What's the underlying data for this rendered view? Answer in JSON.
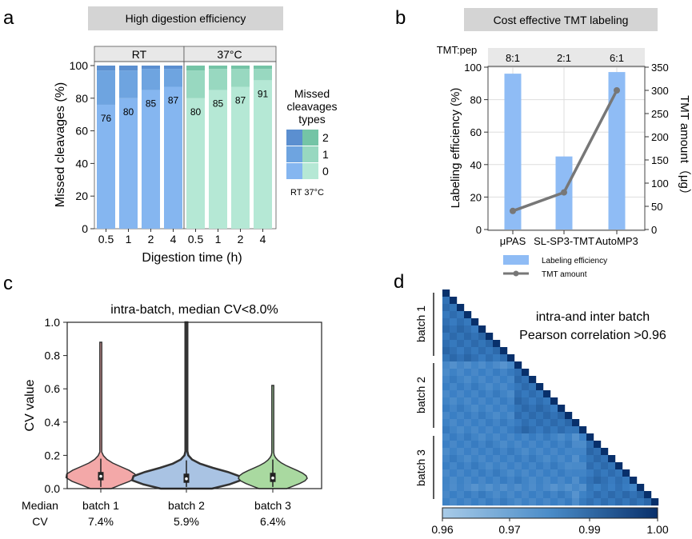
{
  "panels": {
    "a": {
      "letter": "a",
      "header": "High digestion efficiency"
    },
    "b": {
      "letter": "b",
      "header": "Cost effective TMT labeling"
    },
    "c": {
      "letter": "c"
    },
    "d": {
      "letter": "d"
    }
  },
  "colors": {
    "header_bg": "#d4d4d4",
    "facet_bg": "#e8e8e8",
    "rt_0": "#85b6f0",
    "rt_1": "#6ea4e0",
    "rt_2": "#5b8fd0",
    "c37_0": "#b5e8d5",
    "c37_1": "#98d8c0",
    "c37_2": "#74c4a6",
    "bar_b": "#8fbcf5",
    "line_b": "#777777",
    "violin_1": "#f3a8a8",
    "violin_2": "#a9c3e3",
    "violin_3": "#a9d9a0",
    "heat_low": "#a8cbe8",
    "heat_high": "#08306b"
  },
  "chart_data": [
    {
      "id": "a",
      "type": "bar",
      "subtype": "stacked",
      "facets": [
        "RT",
        "37°C"
      ],
      "categories": [
        "0.5",
        "1",
        "2",
        "4"
      ],
      "xlabel": "Digestion time (h)",
      "ylabel": "Missed cleavages (%)",
      "ylim": [
        0,
        100
      ],
      "yticks": [
        0,
        20,
        40,
        60,
        80,
        100
      ],
      "series_RT": {
        "0": [
          76,
          80,
          85,
          87
        ],
        "1": [
          21,
          17,
          13,
          11
        ],
        "2": [
          3,
          3,
          2,
          2
        ]
      },
      "series_37C": {
        "0": [
          80,
          85,
          87,
          91
        ],
        "1": [
          17,
          13,
          11,
          7
        ],
        "2": [
          3,
          2,
          2,
          2
        ]
      },
      "data_labels_RT": [
        "76",
        "80",
        "85",
        "87"
      ],
      "data_labels_37C": [
        "80",
        "85",
        "87",
        "91"
      ],
      "legend": {
        "title": "Missed cleavages types",
        "entries": [
          "2",
          "1",
          "0"
        ],
        "footer": "RT 37°C",
        "placement": "right"
      }
    },
    {
      "id": "b",
      "type": "bar",
      "subtype": "bar+line dual axis",
      "categories": [
        "μPAS",
        "SL-SP3-TMT",
        "AutoMP3"
      ],
      "ratio_label": "TMT:pep",
      "ratios": [
        "8:1",
        "2:1",
        "6:1"
      ],
      "series": [
        {
          "name": "Labeling efficiency",
          "type": "bar",
          "values": [
            96,
            45,
            97
          ]
        },
        {
          "name": "TMT amount",
          "type": "line",
          "values": [
            40,
            80,
            300
          ]
        }
      ],
      "ylabel_left": "Labeling efficiency (%)",
      "ylim_left": [
        0,
        100
      ],
      "yticks_left": [
        0,
        20,
        40,
        60,
        80,
        100
      ],
      "ylabel_right": "TMT amount（μg）",
      "ylim_right": [
        0,
        350
      ],
      "yticks_right": [
        0,
        50,
        100,
        150,
        200,
        250,
        300,
        350
      ],
      "grid": true,
      "legend_placement": "bottom"
    },
    {
      "id": "c",
      "type": "violin",
      "title": "intra-batch, median CV<8.0%",
      "ylabel": "CV value",
      "ylim": [
        0,
        1.0
      ],
      "yticks": [
        "0.0",
        "0.2",
        "0.4",
        "0.6",
        "0.8",
        "1.0"
      ],
      "row_label": [
        "Median",
        "CV"
      ],
      "groups": [
        {
          "name": "batch 1",
          "median_text": "7.4%",
          "median": 0.074,
          "q1": 0.05,
          "q3": 0.1,
          "max": 0.88
        },
        {
          "name": "batch 2",
          "median_text": "5.9%",
          "median": 0.059,
          "q1": 0.035,
          "q3": 0.09,
          "max": 1.0
        },
        {
          "name": "batch 3",
          "median_text": "6.4%",
          "median": 0.064,
          "q1": 0.04,
          "q3": 0.095,
          "max": 0.62
        }
      ]
    },
    {
      "id": "d",
      "type": "heatmap",
      "subtype": "lower-triangular correlation matrix",
      "title_lines": [
        "intra-and inter batch",
        "Pearson correlation >0.96"
      ],
      "row_groups": [
        "batch 1",
        "batch 2",
        "batch 3"
      ],
      "colorbar_ticks": [
        "0.96",
        "0.97",
        "0.99",
        "1.00"
      ],
      "range": [
        0.96,
        1.0
      ]
    }
  ]
}
